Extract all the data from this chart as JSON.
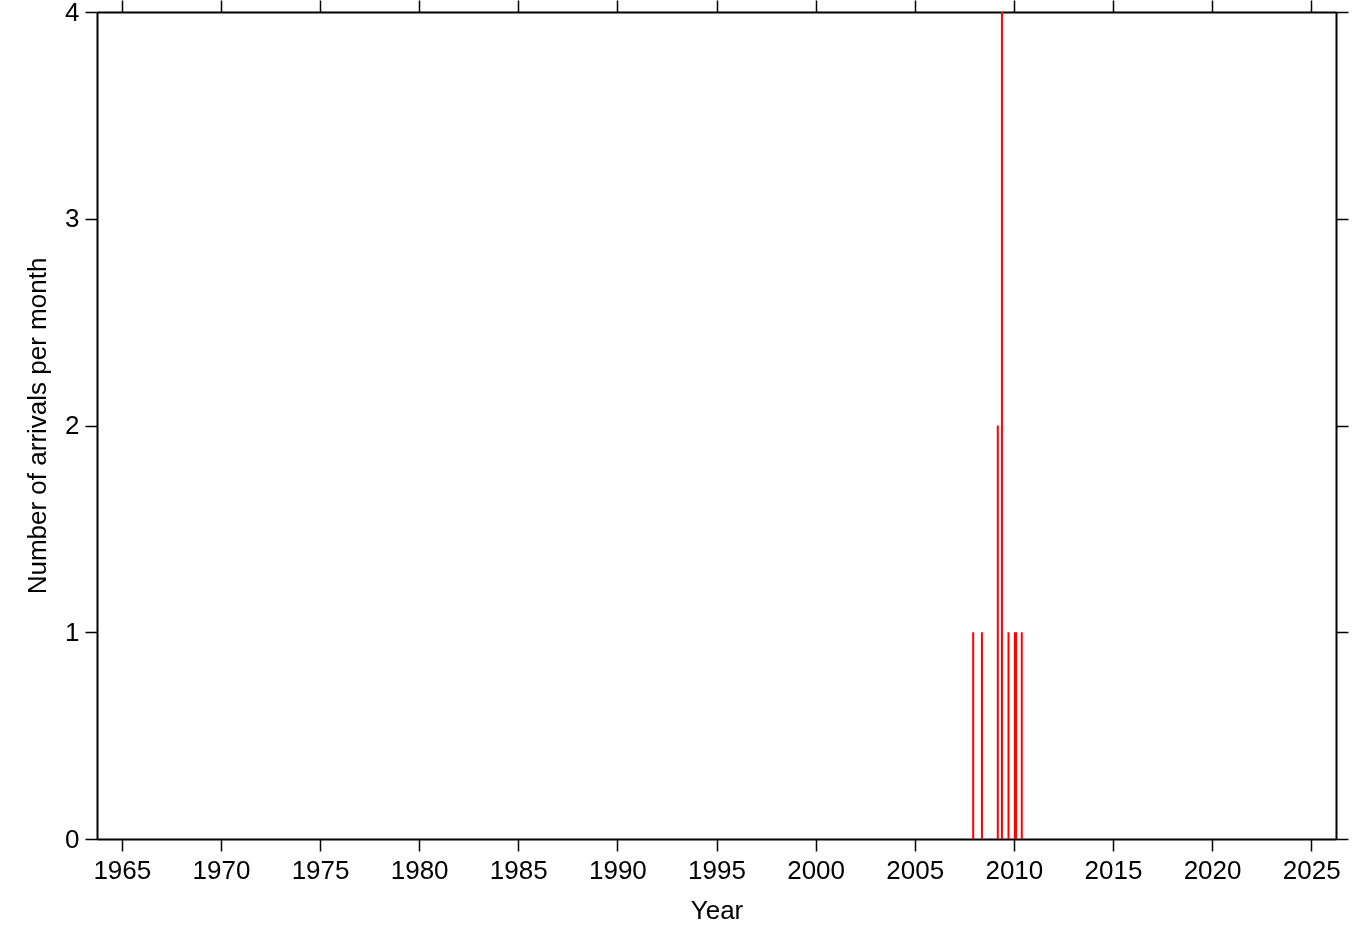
{
  "chart_data": {
    "type": "bar",
    "xlabel": "Year",
    "ylabel": "Number of arrivals per month",
    "x": [
      2007.95,
      2008.39,
      2009.19,
      2009.4,
      2009.73,
      2010.05,
      2010.11,
      2010.4
    ],
    "series": [
      {
        "color": "#ff0000",
        "values": [
          1,
          1,
          2,
          4,
          1,
          1,
          1,
          1
        ]
      }
    ],
    "xlim": [
      1964,
      2026
    ],
    "xticks": [
      1965,
      1970,
      1975,
      1980,
      1985,
      1990,
      1995,
      2000,
      2005,
      2010,
      2015,
      2020,
      2025
    ],
    "ylim": [
      0,
      4
    ],
    "yticks": [
      0,
      1,
      2,
      3,
      4
    ],
    "grid": false,
    "legend": false
  }
}
